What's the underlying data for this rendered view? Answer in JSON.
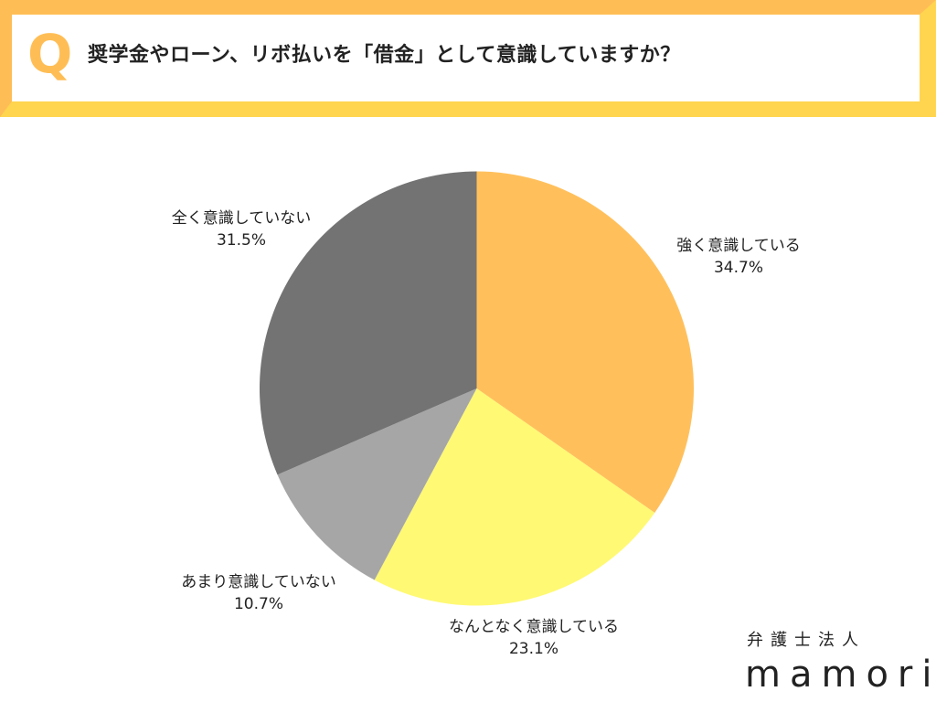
{
  "header": {
    "q_mark": "Q",
    "question": "奨学金やローン、リボ払いを「借金」として意識していますか？",
    "colors": {
      "orange": "#FFBE55",
      "yellow": "#FFD54F"
    }
  },
  "chart_data": {
    "type": "pie",
    "title": "奨学金やローン、リボ払いを「借金」として意識していますか？",
    "categories": [
      "強く意識している",
      "なんとなく意識している",
      "あまり意識していない",
      "全く意識していない"
    ],
    "values": [
      34.7,
      23.1,
      10.7,
      31.5
    ],
    "unit": "%",
    "colors": [
      "#FFC05C",
      "#FFF974",
      "#A6A6A6",
      "#737373"
    ],
    "start_angle": "12 o'clock",
    "direction": "clockwise",
    "legend": "none (labels beside slices)",
    "labels": [
      {
        "name": "強く意識している",
        "pct": "34.7%"
      },
      {
        "name": "なんとなく意識している",
        "pct": "23.1%"
      },
      {
        "name": "あまり意識していない",
        "pct": "10.7%"
      },
      {
        "name": "全く意識していない",
        "pct": "31.5%"
      }
    ]
  },
  "logo": {
    "sub": "弁護士法人",
    "main": "mamori"
  }
}
